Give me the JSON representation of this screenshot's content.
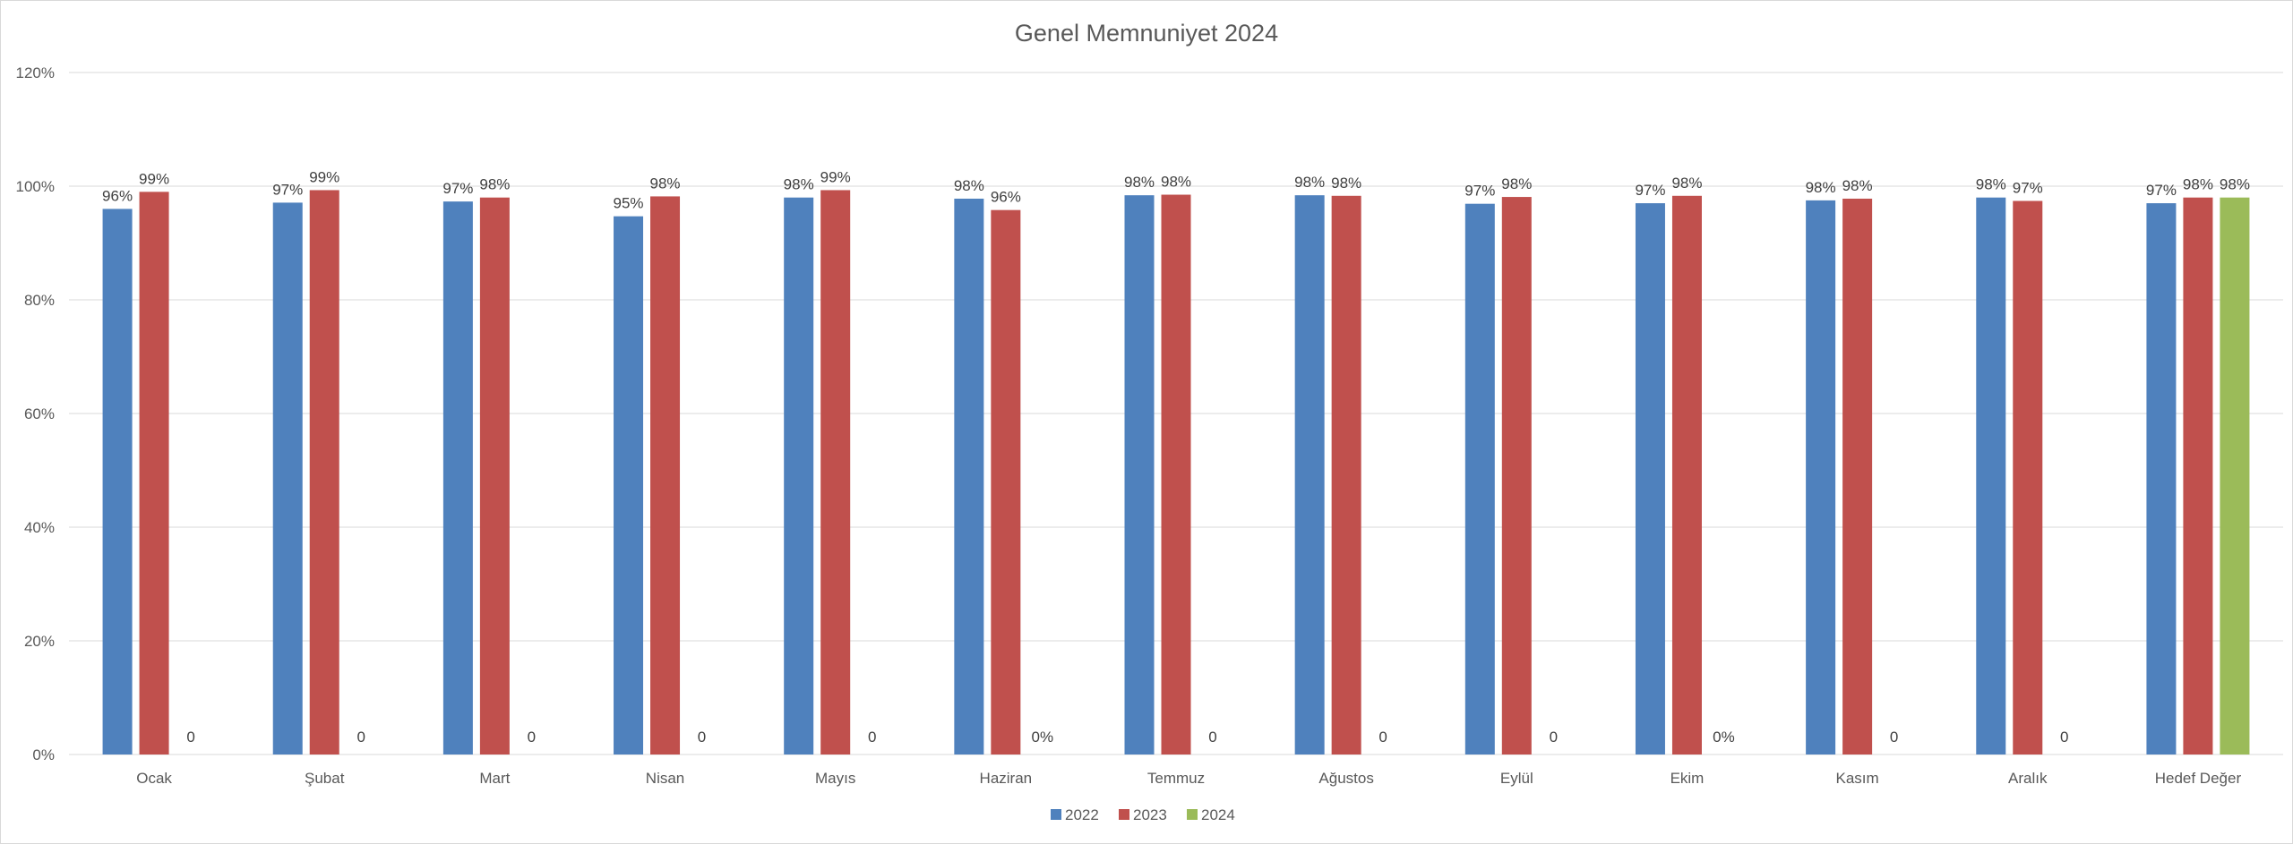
{
  "chart_data": {
    "type": "bar",
    "title": "Genel Memnuniyet 2024",
    "xlabel": "",
    "ylabel": "",
    "ylim": [
      0,
      1.2
    ],
    "yticks": [
      {
        "value": 0,
        "label": "0%"
      },
      {
        "value": 0.2,
        "label": "20%"
      },
      {
        "value": 0.4,
        "label": "40%"
      },
      {
        "value": 0.6,
        "label": "60%"
      },
      {
        "value": 0.8,
        "label": "80%"
      },
      {
        "value": 1.0,
        "label": "100%"
      },
      {
        "value": 1.2,
        "label": "120%"
      }
    ],
    "grid": true,
    "legend_position": "bottom",
    "categories": [
      "Ocak",
      "Şubat",
      "Mart",
      "Nisan",
      "Mayıs",
      "Haziran",
      "Temmuz",
      "Ağustos",
      "Eylül",
      "Ekim",
      "Kasım",
      "Aralık",
      "Hedef Değer"
    ],
    "series": [
      {
        "name": "2022",
        "color": "#4f81bd",
        "values": [
          0.96,
          0.971,
          0.973,
          0.947,
          0.98,
          0.978,
          0.984,
          0.984,
          0.969,
          0.97,
          0.975,
          0.98,
          0.97
        ],
        "labels": [
          "96%",
          "97%",
          "97%",
          "95%",
          "98%",
          "98%",
          "98%",
          "98%",
          "97%",
          "97%",
          "98%",
          "98%",
          "97%"
        ]
      },
      {
        "name": "2023",
        "color": "#c0504d",
        "values": [
          0.99,
          0.993,
          0.98,
          0.982,
          0.993,
          0.958,
          0.985,
          0.983,
          0.981,
          0.983,
          0.978,
          0.974,
          0.98
        ],
        "labels": [
          "99%",
          "99%",
          "98%",
          "98%",
          "99%",
          "96%",
          "98%",
          "98%",
          "98%",
          "98%",
          "98%",
          "97%",
          "98%"
        ]
      },
      {
        "name": "2024",
        "color": "#9bbb59",
        "values": [
          0,
          0,
          0,
          0,
          0,
          0,
          0,
          0,
          0,
          0,
          0,
          0,
          0.98
        ],
        "labels": [
          "0",
          "0",
          "0",
          "0",
          "0",
          "0%",
          "0",
          "0",
          "0",
          "0%",
          "0",
          "0",
          "98%"
        ]
      }
    ]
  }
}
